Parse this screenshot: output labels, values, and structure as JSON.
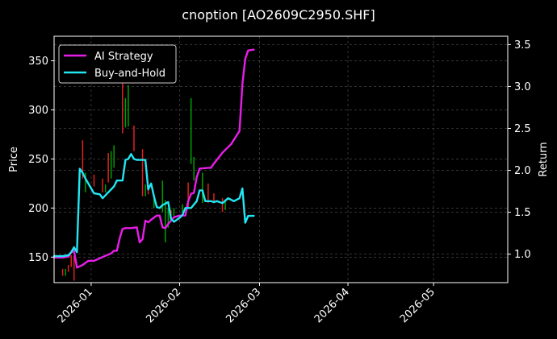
{
  "chart_data": {
    "type": "line",
    "title": "cnoption [AO2609C2950.SHF]",
    "xlabel": "",
    "ylabel": "Price",
    "ylabel_right": "Return",
    "x_range": [
      "2025-12-19",
      "2026-05-27"
    ],
    "ylim": [
      124,
      375
    ],
    "ylim_right": [
      0.66,
      3.6
    ],
    "grid": true,
    "legend_position": "top-left",
    "x_ticks": [
      {
        "date": "2026-01-01",
        "label": "2026-01"
      },
      {
        "date": "2026-02-01",
        "label": "2026-02"
      },
      {
        "date": "2026-03-01",
        "label": "2026-03"
      },
      {
        "date": "2026-04-01",
        "label": "2026-04"
      },
      {
        "date": "2026-05-01",
        "label": "2026-05"
      }
    ],
    "y_ticks": [
      150,
      200,
      250,
      300,
      350
    ],
    "y_ticks_right": [
      1.0,
      1.5,
      2.0,
      2.5,
      3.0,
      3.5
    ],
    "colors": {
      "background": "#000000",
      "ai_strategy": "#e81ee8",
      "buy_and_hold": "#22e6f2",
      "candle_up": "#00a000",
      "candle_down": "#e0211e",
      "grid": "#555555",
      "axis": "#ffffff"
    },
    "candles": [
      {
        "date": "2025-12-22",
        "low": 131,
        "high": 138,
        "dir": "down"
      },
      {
        "date": "2025-12-23",
        "low": 131,
        "high": 138,
        "dir": "up"
      },
      {
        "date": "2025-12-24",
        "low": 135,
        "high": 142,
        "dir": "down"
      },
      {
        "date": "2025-12-25",
        "low": 140,
        "high": 152,
        "dir": "down"
      },
      {
        "date": "2025-12-26",
        "low": 126,
        "high": 151,
        "dir": "down"
      },
      {
        "date": "2025-12-29",
        "low": 230,
        "high": 269,
        "dir": "down"
      },
      {
        "date": "2025-12-30",
        "low": 216,
        "high": 236,
        "dir": "up"
      },
      {
        "date": "2026-01-02",
        "low": 222,
        "high": 234,
        "dir": "down"
      },
      {
        "date": "2026-01-05",
        "low": 216,
        "high": 230,
        "dir": "down"
      },
      {
        "date": "2026-01-06",
        "low": 216,
        "high": 224,
        "dir": "up"
      },
      {
        "date": "2026-01-07",
        "low": 226,
        "high": 256,
        "dir": "down"
      },
      {
        "date": "2026-01-08",
        "low": 230,
        "high": 258,
        "dir": "up"
      },
      {
        "date": "2026-01-09",
        "low": 241,
        "high": 264,
        "dir": "up"
      },
      {
        "date": "2026-01-12",
        "low": 276,
        "high": 330,
        "dir": "down"
      },
      {
        "date": "2026-01-13",
        "low": 282,
        "high": 312,
        "dir": "up"
      },
      {
        "date": "2026-01-14",
        "low": 283,
        "high": 325,
        "dir": "up"
      },
      {
        "date": "2026-01-16",
        "low": 258,
        "high": 284,
        "dir": "down"
      },
      {
        "date": "2026-01-19",
        "low": 212,
        "high": 260,
        "dir": "down"
      },
      {
        "date": "2026-01-20",
        "low": 212,
        "high": 224,
        "dir": "up"
      },
      {
        "date": "2026-01-21",
        "low": 214,
        "high": 222,
        "dir": "down"
      },
      {
        "date": "2026-01-23",
        "low": 200,
        "high": 210,
        "dir": "up"
      },
      {
        "date": "2026-01-26",
        "low": 196,
        "high": 228,
        "dir": "up"
      },
      {
        "date": "2026-01-27",
        "low": 165,
        "high": 208,
        "dir": "up"
      },
      {
        "date": "2026-01-28",
        "low": 180,
        "high": 200,
        "dir": "up"
      },
      {
        "date": "2026-01-29",
        "low": 188,
        "high": 198,
        "dir": "down"
      },
      {
        "date": "2026-01-30",
        "low": 192,
        "high": 200,
        "dir": "up"
      },
      {
        "date": "2026-02-02",
        "low": 196,
        "high": 204,
        "dir": "up"
      },
      {
        "date": "2026-02-04",
        "low": 200,
        "high": 226,
        "dir": "down"
      },
      {
        "date": "2026-02-05",
        "low": 245,
        "high": 312,
        "dir": "up"
      },
      {
        "date": "2026-02-06",
        "low": 228,
        "high": 252,
        "dir": "up"
      },
      {
        "date": "2026-02-09",
        "low": 205,
        "high": 236,
        "dir": "up"
      },
      {
        "date": "2026-02-11",
        "low": 205,
        "high": 225,
        "dir": "down"
      },
      {
        "date": "2026-02-13",
        "low": 205,
        "high": 215,
        "dir": "down"
      },
      {
        "date": "2026-02-16",
        "low": 196,
        "high": 210,
        "dir": "down"
      },
      {
        "date": "2026-02-17",
        "low": 198,
        "high": 208,
        "dir": "up"
      }
    ],
    "series": [
      {
        "name": "AI Strategy",
        "axis": "right",
        "color": "#e81ee8",
        "points": [
          [
            "2025-12-19",
            0.96
          ],
          [
            "2025-12-22",
            0.96
          ],
          [
            "2025-12-24",
            0.97
          ],
          [
            "2025-12-25",
            1.02
          ],
          [
            "2025-12-26",
            1.04
          ],
          [
            "2025-12-27",
            0.84
          ],
          [
            "2025-12-29",
            0.87
          ],
          [
            "2025-12-31",
            0.92
          ],
          [
            "2026-01-02",
            0.92
          ],
          [
            "2026-01-04",
            0.95
          ],
          [
            "2026-01-06",
            0.98
          ],
          [
            "2026-01-08",
            1.01
          ],
          [
            "2026-01-09",
            1.04
          ],
          [
            "2026-01-10",
            1.04
          ],
          [
            "2026-01-11",
            1.19
          ],
          [
            "2026-01-12",
            1.3
          ],
          [
            "2026-01-13",
            1.31
          ],
          [
            "2026-01-15",
            1.31
          ],
          [
            "2026-01-17",
            1.32
          ],
          [
            "2026-01-18",
            1.14
          ],
          [
            "2026-01-19",
            1.18
          ],
          [
            "2026-01-20",
            1.4
          ],
          [
            "2026-01-21",
            1.38
          ],
          [
            "2026-01-22",
            1.41
          ],
          [
            "2026-01-24",
            1.46
          ],
          [
            "2026-01-25",
            1.46
          ],
          [
            "2026-01-26",
            1.32
          ],
          [
            "2026-01-27",
            1.31
          ],
          [
            "2026-01-28",
            1.36
          ],
          [
            "2026-01-30",
            1.44
          ],
          [
            "2026-02-01",
            1.46
          ],
          [
            "2026-02-03",
            1.46
          ],
          [
            "2026-02-04",
            1.63
          ],
          [
            "2026-02-05",
            1.72
          ],
          [
            "2026-02-06",
            1.73
          ],
          [
            "2026-02-07",
            1.92
          ],
          [
            "2026-02-08",
            2.02
          ],
          [
            "2026-02-11",
            2.03
          ],
          [
            "2026-02-12",
            2.03
          ],
          [
            "2026-02-13",
            2.08
          ],
          [
            "2026-02-16",
            2.21
          ],
          [
            "2026-02-19",
            2.31
          ],
          [
            "2026-02-22",
            2.47
          ],
          [
            "2026-02-23",
            3.03
          ],
          [
            "2026-02-24",
            3.33
          ],
          [
            "2026-02-25",
            3.43
          ],
          [
            "2026-02-27",
            3.44
          ]
        ]
      },
      {
        "name": "Buy-and-Hold",
        "axis": "left",
        "color": "#22e6f2",
        "points": [
          [
            "2025-12-19",
            151
          ],
          [
            "2025-12-22",
            151
          ],
          [
            "2025-12-24",
            152
          ],
          [
            "2025-12-25",
            155
          ],
          [
            "2025-12-26",
            160
          ],
          [
            "2025-12-27",
            155
          ],
          [
            "2025-12-28",
            240
          ],
          [
            "2025-12-29",
            236
          ],
          [
            "2025-12-30",
            230
          ],
          [
            "2025-12-31",
            225
          ],
          [
            "2026-01-01",
            220
          ],
          [
            "2026-01-02",
            215
          ],
          [
            "2026-01-04",
            214
          ],
          [
            "2026-01-05",
            210
          ],
          [
            "2026-01-07",
            216
          ],
          [
            "2026-01-09",
            222
          ],
          [
            "2026-01-10",
            228
          ],
          [
            "2026-01-12",
            228
          ],
          [
            "2026-01-13",
            249
          ],
          [
            "2026-01-14",
            250
          ],
          [
            "2026-01-15",
            255
          ],
          [
            "2026-01-16",
            250
          ],
          [
            "2026-01-17",
            249
          ],
          [
            "2026-01-20",
            249
          ],
          [
            "2026-01-21",
            219
          ],
          [
            "2026-01-22",
            225
          ],
          [
            "2026-01-23",
            212
          ],
          [
            "2026-01-24",
            201
          ],
          [
            "2026-01-25",
            200
          ],
          [
            "2026-01-26",
            203
          ],
          [
            "2026-01-28",
            206
          ],
          [
            "2026-01-29",
            189
          ],
          [
            "2026-01-30",
            186
          ],
          [
            "2026-02-01",
            190
          ],
          [
            "2026-02-02",
            193
          ],
          [
            "2026-02-03",
            200
          ],
          [
            "2026-02-05",
            200
          ],
          [
            "2026-02-07",
            207
          ],
          [
            "2026-02-08",
            218
          ],
          [
            "2026-02-09",
            218
          ],
          [
            "2026-02-10",
            207
          ],
          [
            "2026-02-12",
            207
          ],
          [
            "2026-02-13",
            206
          ],
          [
            "2026-02-14",
            207
          ],
          [
            "2026-02-16",
            205
          ],
          [
            "2026-02-18",
            210
          ],
          [
            "2026-02-20",
            207
          ],
          [
            "2026-02-22",
            210
          ],
          [
            "2026-02-23",
            220
          ],
          [
            "2026-02-24",
            185
          ],
          [
            "2026-02-25",
            192
          ],
          [
            "2026-02-27",
            192
          ]
        ]
      }
    ]
  }
}
